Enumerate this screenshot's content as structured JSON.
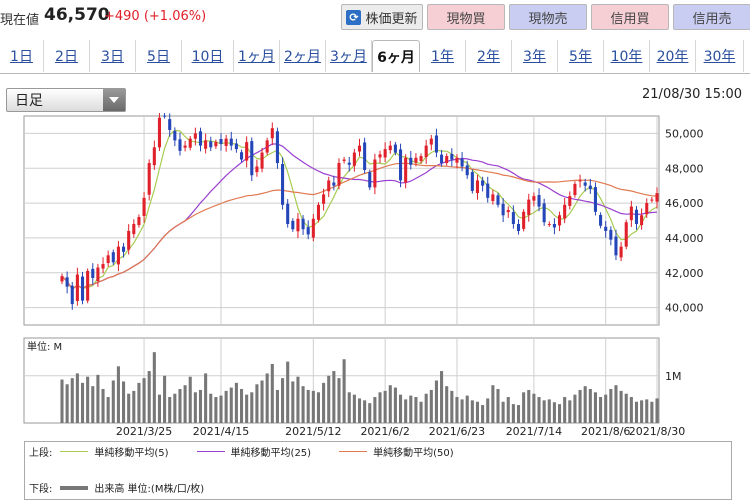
{
  "quote": {
    "price_label": "現在値",
    "price": "46,570",
    "change": "+490 (+1.06%)"
  },
  "actions": {
    "refresh": "株価更新",
    "buy": "現物買",
    "sell": "現物売",
    "margin_buy": "信用買",
    "margin_sell": "信用売"
  },
  "period_tabs": [
    "1日",
    "2日",
    "3日",
    "5日",
    "10日",
    "1ヶ月",
    "2ヶ月",
    "3ヶ月",
    "6ヶ月",
    "1年",
    "2年",
    "3年",
    "5年",
    "10年",
    "20年",
    "30年"
  ],
  "active_period": "6ヶ月",
  "chart_type": "日足",
  "timestamp": "21/08/30 15:00",
  "colors": {
    "up": "#e0202a",
    "down": "#2446b8",
    "ma5": "#a8cc52",
    "ma25": "#9a3fd0",
    "ma50": "#e07a50",
    "volume": "#777777"
  },
  "chart_data": {
    "type": "candlestick",
    "price_axis": {
      "ticks": [
        "50,000",
        "48,000",
        "46,000",
        "44,000",
        "42,000",
        "40,000"
      ],
      "range": [
        39000,
        51000
      ]
    },
    "volume_axis": {
      "unit_label": "単位: M",
      "tick": "1M",
      "range": [
        0,
        1.8
      ]
    },
    "x_ticks": [
      "2021/3/25",
      "2021/4/15",
      "2021/5/12",
      "2021/6/2",
      "2021/6/23",
      "2021/7/14",
      "2021/8/6",
      "2021/8/30"
    ],
    "closes": [
      41800,
      41200,
      40200,
      41900,
      40400,
      42100,
      41700,
      42300,
      42500,
      43000,
      42600,
      43500,
      43200,
      44400,
      44800,
      45200,
      46300,
      48300,
      49200,
      50900,
      51000,
      50200,
      49600,
      49000,
      49300,
      49700,
      50000,
      49300,
      49600,
      49200,
      49500,
      49400,
      49700,
      49300,
      49100,
      48500,
      49500,
      47600,
      48100,
      48900,
      49600,
      50300,
      48300,
      45900,
      44800,
      44500,
      45100,
      44500,
      44200,
      45100,
      45900,
      46500,
      47300,
      47000,
      48300,
      48500,
      48200,
      48900,
      49300,
      47900,
      46900,
      48500,
      48800,
      49100,
      49300,
      48900,
      47300,
      48600,
      48200,
      48600,
      48700,
      49300,
      49700,
      48900,
      48300,
      48700,
      48500,
      48600,
      48100,
      47600,
      46700,
      47300,
      47000,
      46300,
      46500,
      45900,
      45300,
      45600,
      44800,
      44400,
      45500,
      46200,
      46400,
      45800,
      44900,
      44800,
      44600,
      45300,
      45900,
      46400,
      47100,
      47300,
      47000,
      46800,
      45500,
      44700,
      44400,
      43900,
      43000,
      43500,
      44900,
      45800,
      44800,
      45300,
      46000,
      46200,
      46570
    ],
    "volumes": [
      0.92,
      0.82,
      0.95,
      1.05,
      0.85,
      0.98,
      0.78,
      1.02,
      0.72,
      0.55,
      0.9,
      1.2,
      0.88,
      0.62,
      0.68,
      0.85,
      0.95,
      1.1,
      1.5,
      0.6,
      1.0,
      0.55,
      0.62,
      0.72,
      0.8,
      0.98,
      0.65,
      0.7,
      1.05,
      0.62,
      0.55,
      0.58,
      0.68,
      0.75,
      0.85,
      0.72,
      0.6,
      0.65,
      0.82,
      0.9,
      1.05,
      1.25,
      0.7,
      0.95,
      1.3,
      0.88,
      0.98,
      0.78,
      0.7,
      0.68,
      0.65,
      0.85,
      1.0,
      1.1,
      0.95,
      1.35,
      0.65,
      0.6,
      0.52,
      0.48,
      0.42,
      0.55,
      0.65,
      0.68,
      0.8,
      0.75,
      0.6,
      0.5,
      0.58,
      0.55,
      0.45,
      0.62,
      0.7,
      0.9,
      1.1,
      0.78,
      0.68,
      0.55,
      0.5,
      0.58,
      0.48,
      0.45,
      0.38,
      0.52,
      0.8,
      0.72,
      0.45,
      0.55,
      0.4,
      0.38,
      0.65,
      0.7,
      0.62,
      0.55,
      0.48,
      0.5,
      0.44,
      0.4,
      0.55,
      0.48,
      0.6,
      0.7,
      0.78,
      0.72,
      0.65,
      0.55,
      0.6,
      0.72,
      0.8,
      0.68,
      0.62,
      0.55,
      0.45,
      0.48,
      0.5,
      0.45,
      0.52
    ],
    "legend_upper_label": "上段:",
    "legend_lower_label": "下段:",
    "series": [
      {
        "name": "単純移動平均(5)",
        "period": 5
      },
      {
        "name": "単純移動平均(25)",
        "period": 25
      },
      {
        "name": "単純移動平均(50)",
        "period": 50
      }
    ],
    "volume_series_name": "出来高 単位:(M株/口/枚)"
  }
}
